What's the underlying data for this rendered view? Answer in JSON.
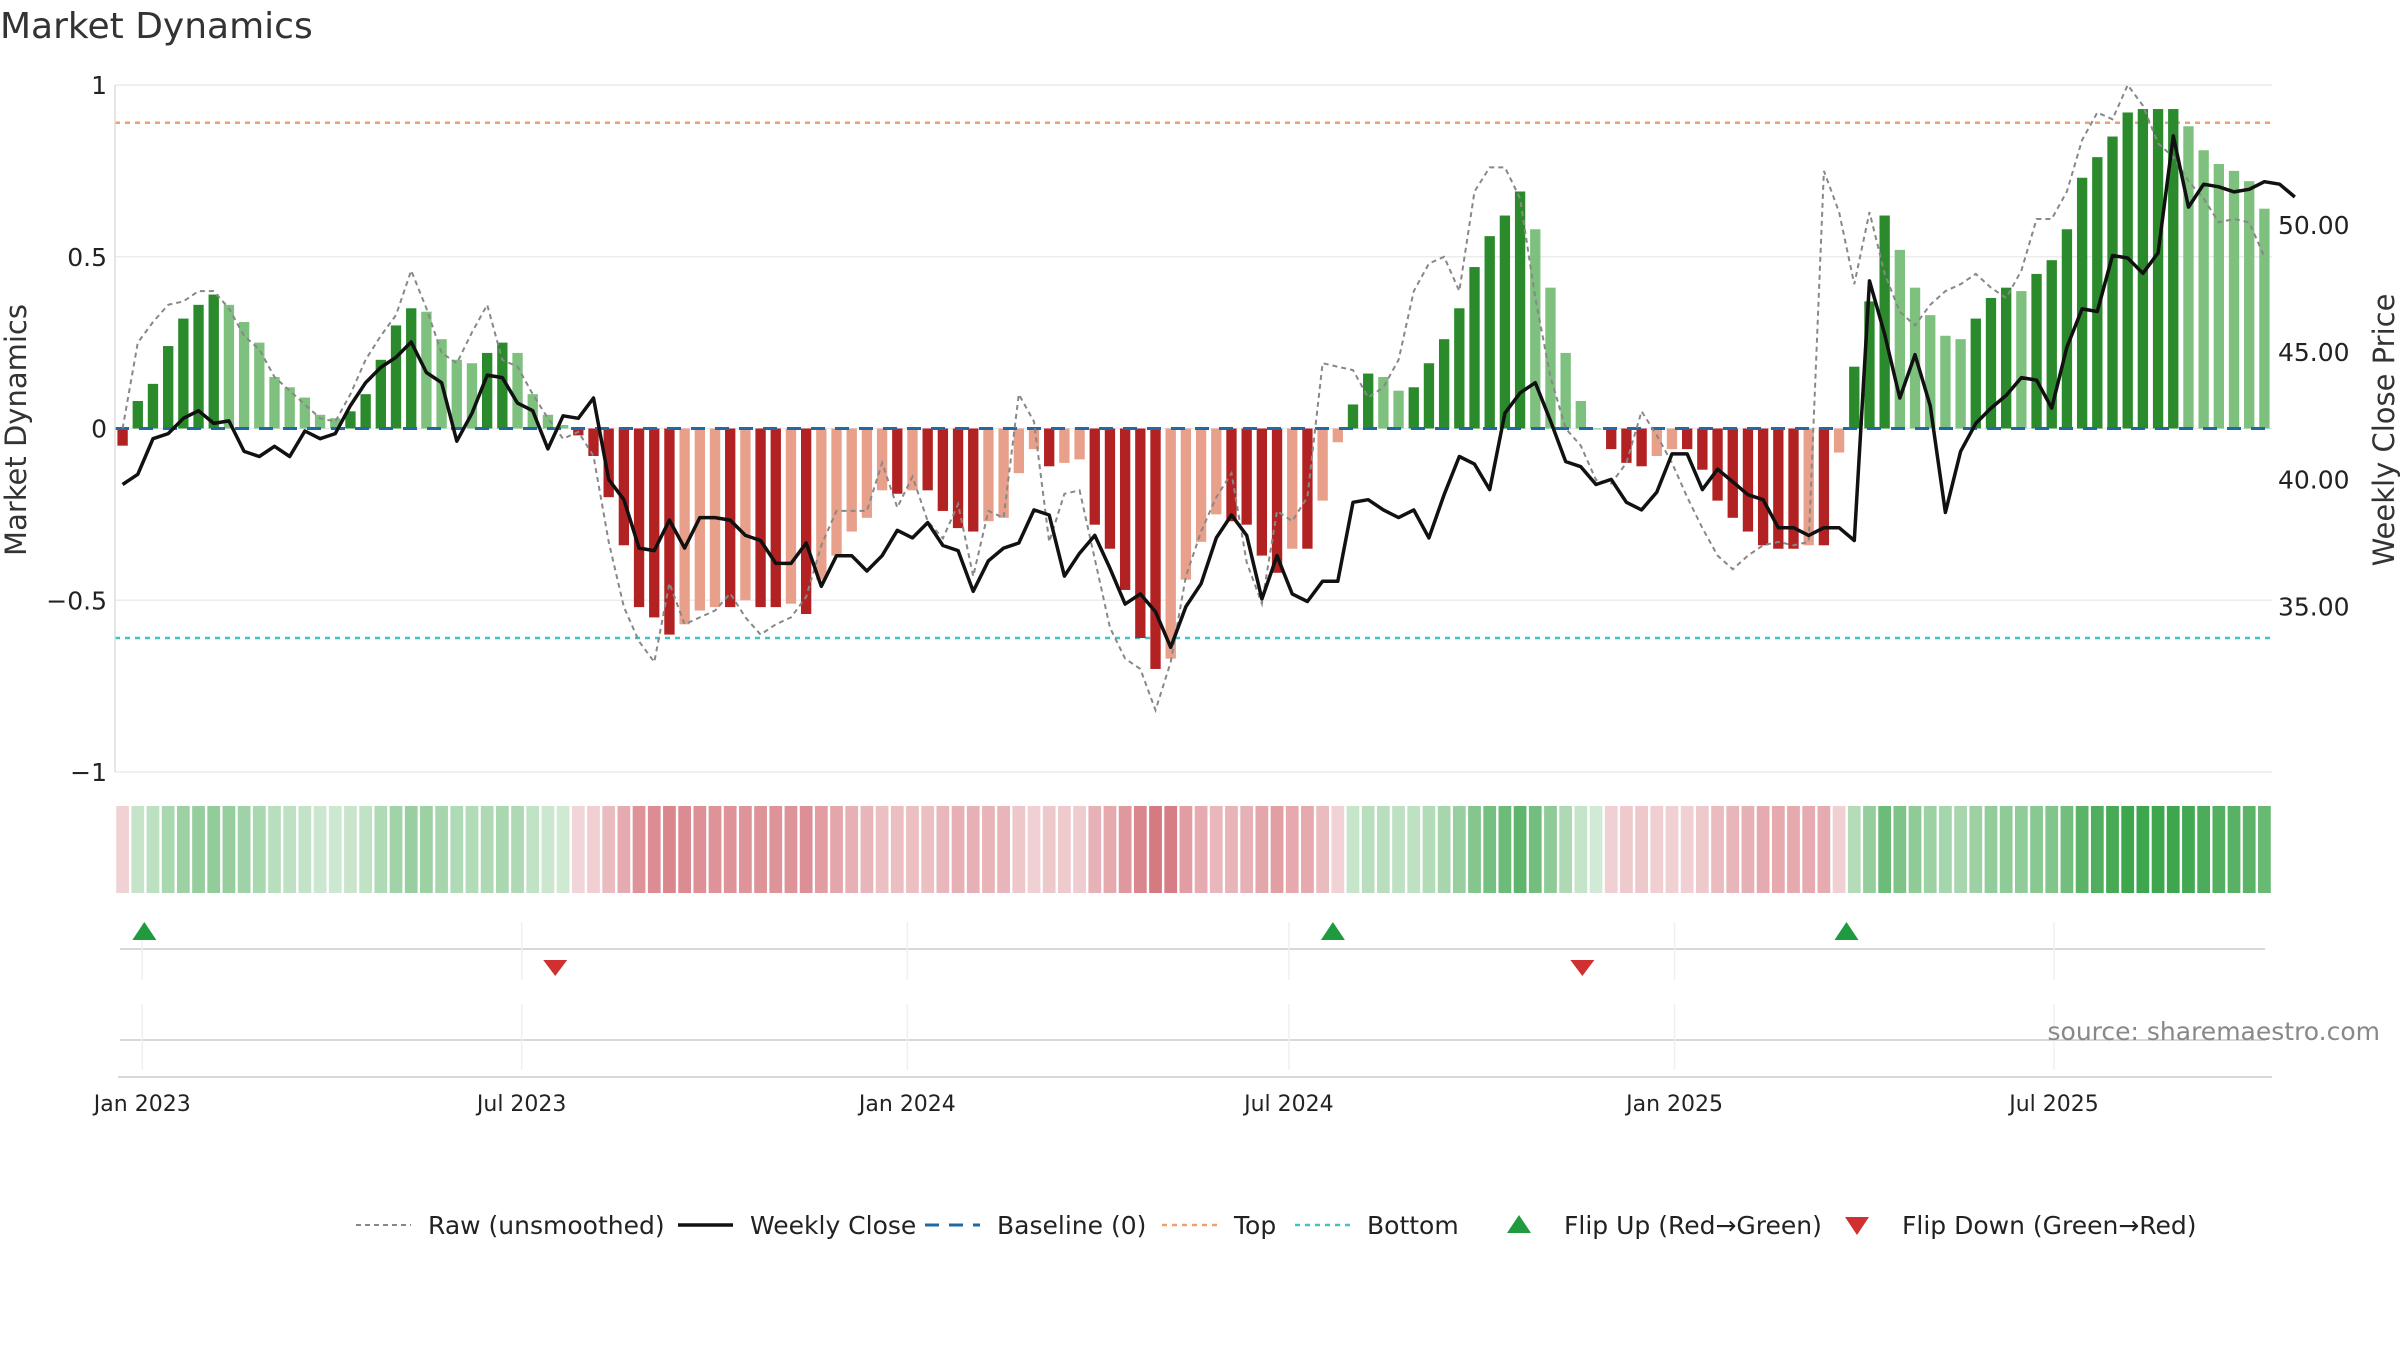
{
  "chart_data": {
    "type": "bar",
    "title": "Market Dynamics",
    "ylabel_left": "Market Dynamics",
    "ylabel_right": "Weekly Close Price",
    "source": "source: sharemaestro.com",
    "ylim_left": [
      -1,
      1
    ],
    "ylim_right": [
      28.5,
      55.5
    ],
    "left_ticks": [
      {
        "v": 1,
        "label": "1"
      },
      {
        "v": 0.5,
        "label": "0.5"
      },
      {
        "v": 0,
        "label": "0"
      },
      {
        "v": -0.5,
        "label": "−0.5"
      },
      {
        "v": -1,
        "label": "−1"
      }
    ],
    "right_ticks": [
      {
        "v": 50,
        "label": "50.00"
      },
      {
        "v": 45,
        "label": "45.00"
      },
      {
        "v": 40,
        "label": "40.00"
      },
      {
        "v": 35,
        "label": "35.00"
      }
    ],
    "x_start": "2022-12-19",
    "x_end": "2025-10-13",
    "x_ticks": [
      {
        "date": "2023-01-01",
        "label": "Jan 2023"
      },
      {
        "date": "2023-07-01",
        "label": "Jul 2023"
      },
      {
        "date": "2024-01-01",
        "label": "Jan 2024"
      },
      {
        "date": "2024-07-01",
        "label": "Jul 2024"
      },
      {
        "date": "2025-01-01",
        "label": "Jan 2025"
      },
      {
        "date": "2025-07-01",
        "label": "Jul 2025"
      }
    ],
    "top_level": 0.89,
    "bottom_level": -0.61,
    "baseline": 0,
    "bars": [
      -0.05,
      0.08,
      0.13,
      0.24,
      0.32,
      0.36,
      0.39,
      0.36,
      0.31,
      0.25,
      0.15,
      0.12,
      0.09,
      0.04,
      0.03,
      0.05,
      0.1,
      0.2,
      0.3,
      0.35,
      0.34,
      0.26,
      0.2,
      0.19,
      0.22,
      0.25,
      0.22,
      0.1,
      0.04,
      0.01,
      -0.02,
      -0.08,
      -0.2,
      -0.34,
      -0.52,
      -0.55,
      -0.6,
      -0.57,
      -0.53,
      -0.52,
      -0.52,
      -0.5,
      -0.52,
      -0.52,
      -0.51,
      -0.54,
      -0.44,
      -0.37,
      -0.3,
      -0.26,
      -0.18,
      -0.19,
      -0.18,
      -0.18,
      -0.24,
      -0.29,
      -0.3,
      -0.27,
      -0.26,
      -0.13,
      -0.06,
      -0.11,
      -0.1,
      -0.09,
      -0.28,
      -0.35,
      -0.47,
      -0.61,
      -0.7,
      -0.67,
      -0.44,
      -0.33,
      -0.25,
      -0.27,
      -0.28,
      -0.37,
      -0.42,
      -0.35,
      -0.35,
      -0.21,
      -0.04,
      0.07,
      0.16,
      0.15,
      0.11,
      0.12,
      0.19,
      0.26,
      0.35,
      0.47,
      0.56,
      0.62,
      0.69,
      0.58,
      0.41,
      0.22,
      0.08,
      0,
      -0.06,
      -0.1,
      -0.11,
      -0.08,
      -0.06,
      -0.06,
      -0.12,
      -0.21,
      -0.26,
      -0.3,
      -0.34,
      -0.35,
      -0.35,
      -0.34,
      -0.34,
      -0.07,
      0.18,
      0.37,
      0.62,
      0.52,
      0.41,
      0.33,
      0.27,
      0.26,
      0.32,
      0.38,
      0.41,
      0.4,
      0.45,
      0.49,
      0.58,
      0.73,
      0.79,
      0.85,
      0.92,
      0.93,
      0.93,
      0.93,
      0.88,
      0.81,
      0.77,
      0.75,
      0.72,
      0.64
    ],
    "raw_unsmoothed": [
      0,
      0.25,
      0.31,
      0.36,
      0.37,
      0.4,
      0.4,
      0.35,
      0.27,
      0.23,
      0.15,
      0.11,
      0.07,
      0.03,
      0.02,
      0.1,
      0.2,
      0.27,
      0.33,
      0.46,
      0.35,
      0.22,
      0.19,
      0.28,
      0.36,
      0.2,
      0.18,
      0.1,
      0.03,
      -0.03,
      -0.01,
      -0.08,
      -0.33,
      -0.52,
      -0.62,
      -0.68,
      -0.45,
      -0.57,
      -0.55,
      -0.53,
      -0.48,
      -0.55,
      -0.6,
      -0.57,
      -0.55,
      -0.49,
      -0.34,
      -0.24,
      -0.24,
      -0.24,
      -0.1,
      -0.23,
      -0.14,
      -0.27,
      -0.32,
      -0.22,
      -0.43,
      -0.24,
      -0.26,
      0.1,
      0.02,
      -0.33,
      -0.19,
      -0.18,
      -0.38,
      -0.58,
      -0.67,
      -0.7,
      -0.82,
      -0.68,
      -0.43,
      -0.3,
      -0.2,
      -0.13,
      -0.39,
      -0.51,
      -0.24,
      -0.27,
      -0.2,
      0.19,
      0.18,
      0.17,
      0.09,
      0.12,
      0.2,
      0.4,
      0.48,
      0.5,
      0.4,
      0.69,
      0.76,
      0.76,
      0.67,
      0.38,
      0.15,
      0,
      -0.05,
      -0.15,
      -0.16,
      -0.1,
      0.05,
      -0.02,
      -0.1,
      -0.2,
      -0.29,
      -0.37,
      -0.41,
      -0.37,
      -0.34,
      -0.33,
      -0.34,
      -0.33,
      0.75,
      0.63,
      0.42,
      0.63,
      0.45,
      0.34,
      0.3,
      0.36,
      0.4,
      0.42,
      0.45,
      0.41,
      0.38,
      0.46,
      0.61,
      0.61,
      0.69,
      0.84,
      0.92,
      0.9,
      1,
      0.94,
      0.83,
      0.79,
      0.72,
      0.67,
      0.6,
      0.61,
      0.6,
      0.5
    ],
    "weekly_close": [
      39.8,
      40.2,
      41.6,
      41.8,
      42.4,
      42.7,
      42.2,
      42.3,
      41.1,
      40.9,
      41.3,
      40.9,
      41.9,
      41.6,
      41.8,
      42.9,
      43.8,
      44.4,
      44.8,
      45.4,
      44.2,
      43.8,
      41.5,
      42.6,
      44.1,
      44.0,
      43.0,
      42.7,
      41.2,
      42.5,
      42.4,
      43.2,
      40.0,
      39.2,
      37.3,
      37.2,
      38.4,
      37.3,
      38.5,
      38.5,
      38.4,
      37.8,
      37.6,
      36.7,
      36.7,
      37.5,
      35.8,
      37.0,
      37.0,
      36.4,
      37.0,
      38.0,
      37.7,
      38.3,
      37.4,
      37.2,
      35.6,
      36.8,
      37.3,
      37.5,
      38.8,
      38.6,
      36.2,
      37.1,
      37.8,
      36.5,
      35.1,
      35.5,
      34.8,
      33.4,
      35.0,
      35.9,
      37.7,
      38.6,
      37.8,
      35.3,
      37.0,
      35.5,
      35.2,
      36.0,
      36.0,
      39.1,
      39.2,
      38.8,
      38.5,
      38.8,
      37.7,
      39.4,
      40.9,
      40.6,
      39.6,
      42.6,
      43.4,
      43.8,
      42.3,
      40.7,
      40.5,
      39.8,
      40.0,
      39.1,
      38.8,
      39.5,
      41.0,
      41.0,
      39.6,
      40.4,
      39.9,
      39.4,
      39.2,
      38.1,
      38.1,
      37.8,
      38.1,
      38.1,
      37.6,
      47.8,
      45.7,
      43.2,
      44.9,
      42.9,
      38.7,
      41.1,
      42.2,
      42.8,
      43.3,
      44.0,
      43.9,
      42.8,
      45.2,
      46.7,
      46.6,
      48.8,
      48.7,
      48.1,
      48.9,
      53.5,
      50.7,
      51.6,
      51.5,
      51.3,
      51.4,
      51.7,
      51.6,
      51.1
    ],
    "flip_up_dates": [
      "2023-01-02",
      "2024-07-22",
      "2025-03-24"
    ],
    "flip_down_dates": [
      "2023-07-17",
      "2024-11-18"
    ],
    "colors": {
      "strong_green": "#2b8a2b",
      "light_green": "#7ec07e",
      "strong_red": "#b22222",
      "light_red": "#e8a08a",
      "price_line": "#111111",
      "raw_line": "#888888",
      "baseline": "#1f6aa5",
      "top": "#f0a070",
      "bottom": "#3fc4c4",
      "flip_up": "#1f9a3f",
      "flip_down": "#d03030"
    },
    "legend": [
      {
        "label": "Raw (unsmoothed)",
        "style": "raw"
      },
      {
        "label": "Weekly Close",
        "style": "price"
      },
      {
        "label": "Baseline (0)",
        "style": "baseline"
      },
      {
        "label": "Top",
        "style": "top"
      },
      {
        "label": "Bottom",
        "style": "bottom"
      },
      {
        "label": "Flip Up (Red→Green)",
        "style": "flipup"
      },
      {
        "label": "Flip Down (Green→Red)",
        "style": "flipdown"
      }
    ]
  }
}
